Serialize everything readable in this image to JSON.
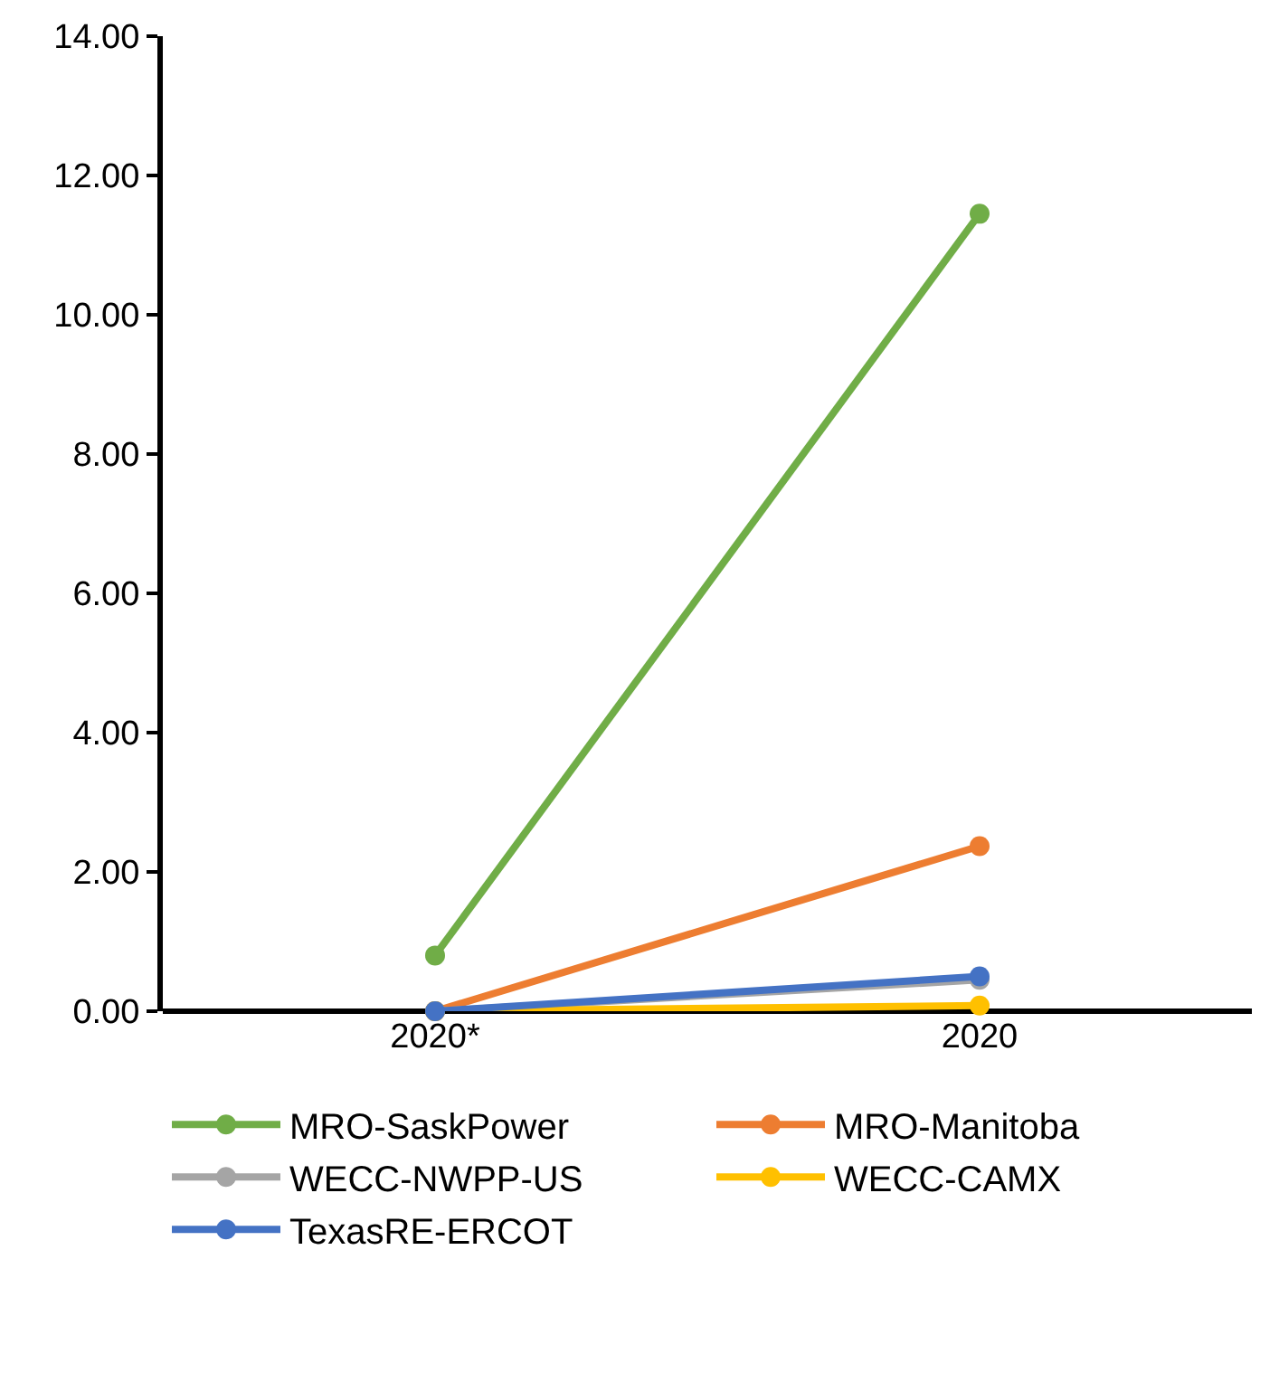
{
  "chart_data": {
    "type": "line",
    "categories": [
      "2020*",
      "2020"
    ],
    "series": [
      {
        "name": "MRO-SaskPower",
        "color": "#70ad47",
        "values": [
          0.8,
          11.45
        ]
      },
      {
        "name": "MRO-Manitoba",
        "color": "#ed7d31",
        "values": [
          0.0,
          2.37
        ]
      },
      {
        "name": "WECC-NWPP-US",
        "color": "#a5a5a5",
        "values": [
          0.0,
          0.45
        ]
      },
      {
        "name": "WECC-CAMX",
        "color": "#ffc000",
        "values": [
          0.0,
          0.08
        ]
      },
      {
        "name": "TexasRE-ERCOT",
        "color": "#4472c4",
        "values": [
          0.0,
          0.5
        ]
      }
    ],
    "ylim": [
      0,
      14
    ],
    "yticks": [
      {
        "value": 0,
        "label": "0.00"
      },
      {
        "value": 2,
        "label": "2.00"
      },
      {
        "value": 4,
        "label": "4.00"
      },
      {
        "value": 6,
        "label": "6.00"
      },
      {
        "value": 8,
        "label": "8.00"
      },
      {
        "value": 10,
        "label": "10.00"
      },
      {
        "value": 12,
        "label": "12.00"
      },
      {
        "value": 14,
        "label": "14.00"
      }
    ],
    "legend": "bottom",
    "marker": "circle",
    "line_style": "solid"
  }
}
